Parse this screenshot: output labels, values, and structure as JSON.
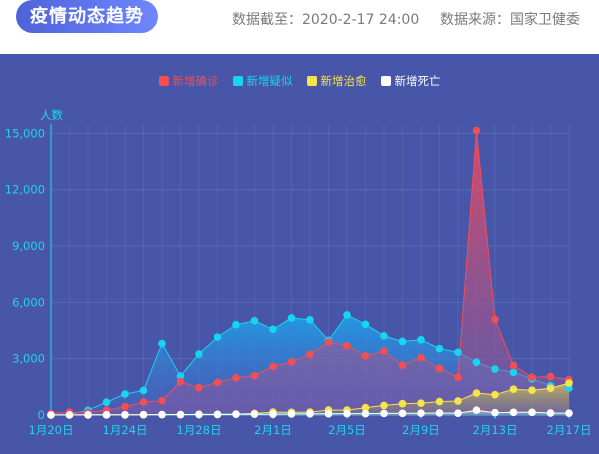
{
  "header": {
    "title": "疫情动态趋势",
    "date_text": "数据截至：2020-2-17 24:00",
    "source_text": "数据来源：国家卫健委"
  },
  "colors": {
    "confirmed": "#f24e55",
    "suspected": "#17d4f0",
    "cured": "#f7e34a",
    "death": "#ffffff",
    "axis": "#22d2f0",
    "panel_bg": "#4756a9"
  },
  "chart_data": {
    "type": "line",
    "title": "",
    "ylabel": "人数",
    "ylim": [
      0,
      15500
    ],
    "yticks": [
      0,
      3000,
      6000,
      9000,
      12000,
      15000
    ],
    "ytick_labels": [
      "0",
      "3,000",
      "6,000",
      "9,000",
      "12,000",
      "15,000"
    ],
    "x": [
      "1月20日",
      "1月21日",
      "1月22日",
      "1月23日",
      "1月24日",
      "1月25日",
      "1月26日",
      "1月27日",
      "1月28日",
      "1月29日",
      "1月30日",
      "1月31日",
      "2月1日",
      "2月2日",
      "2月3日",
      "2月4日",
      "2月5日",
      "2月6日",
      "2月7日",
      "2月8日",
      "2月9日",
      "2月10日",
      "2月11日",
      "2月12日",
      "2月13日",
      "2月14日",
      "2月15日",
      "2月16日",
      "2月17日"
    ],
    "xtick_labels": [
      {
        "index": 0,
        "label": "1月20日"
      },
      {
        "index": 4,
        "label": "1月24日"
      },
      {
        "index": 8,
        "label": "1月28日"
      },
      {
        "index": 12,
        "label": "2月1日"
      },
      {
        "index": 16,
        "label": "2月5日"
      },
      {
        "index": 20,
        "label": "2月9日"
      },
      {
        "index": 24,
        "label": "2月13日"
      },
      {
        "index": 28,
        "label": "2月17日"
      }
    ],
    "grid": true,
    "legend_position": "top-center",
    "series": [
      {
        "name": "新增确诊",
        "key": "confirmed",
        "values": [
          77,
          149,
          131,
          259,
          444,
          688,
          769,
          1771,
          1459,
          1737,
          1982,
          2102,
          2590,
          2829,
          3235,
          3887,
          3694,
          3143,
          3399,
          2656,
          3062,
          2478,
          2015,
          15152,
          5090,
          2641,
          2009,
          2048,
          1886
        ]
      },
      {
        "name": "新增疑似",
        "key": "suspected",
        "values": [
          27,
          25,
          257,
          680,
          1118,
          1309,
          3806,
          2077,
          3248,
          4148,
          4812,
          5019,
          4562,
          5173,
          5072,
          3971,
          5328,
          4833,
          4214,
          3916,
          4008,
          3536,
          3342,
          2807,
          2450,
          2277,
          1918,
          1563,
          1432
        ]
      },
      {
        "name": "新增治愈",
        "key": "cured",
        "values": [
          0,
          0,
          0,
          6,
          3,
          11,
          19,
          13,
          43,
          21,
          47,
          85,
          157,
          147,
          157,
          262,
          261,
          387,
          510,
          600,
          632,
          716,
          744,
          1171,
          1081,
          1373,
          1323,
          1425,
          1701
        ]
      },
      {
        "name": "新增死亡",
        "key": "death",
        "values": [
          0,
          3,
          8,
          8,
          16,
          15,
          24,
          26,
          26,
          38,
          43,
          46,
          45,
          57,
          64,
          65,
          73,
          73,
          86,
          89,
          97,
          108,
          97,
          254,
          121,
          143,
          142,
          105,
          98
        ]
      }
    ]
  }
}
